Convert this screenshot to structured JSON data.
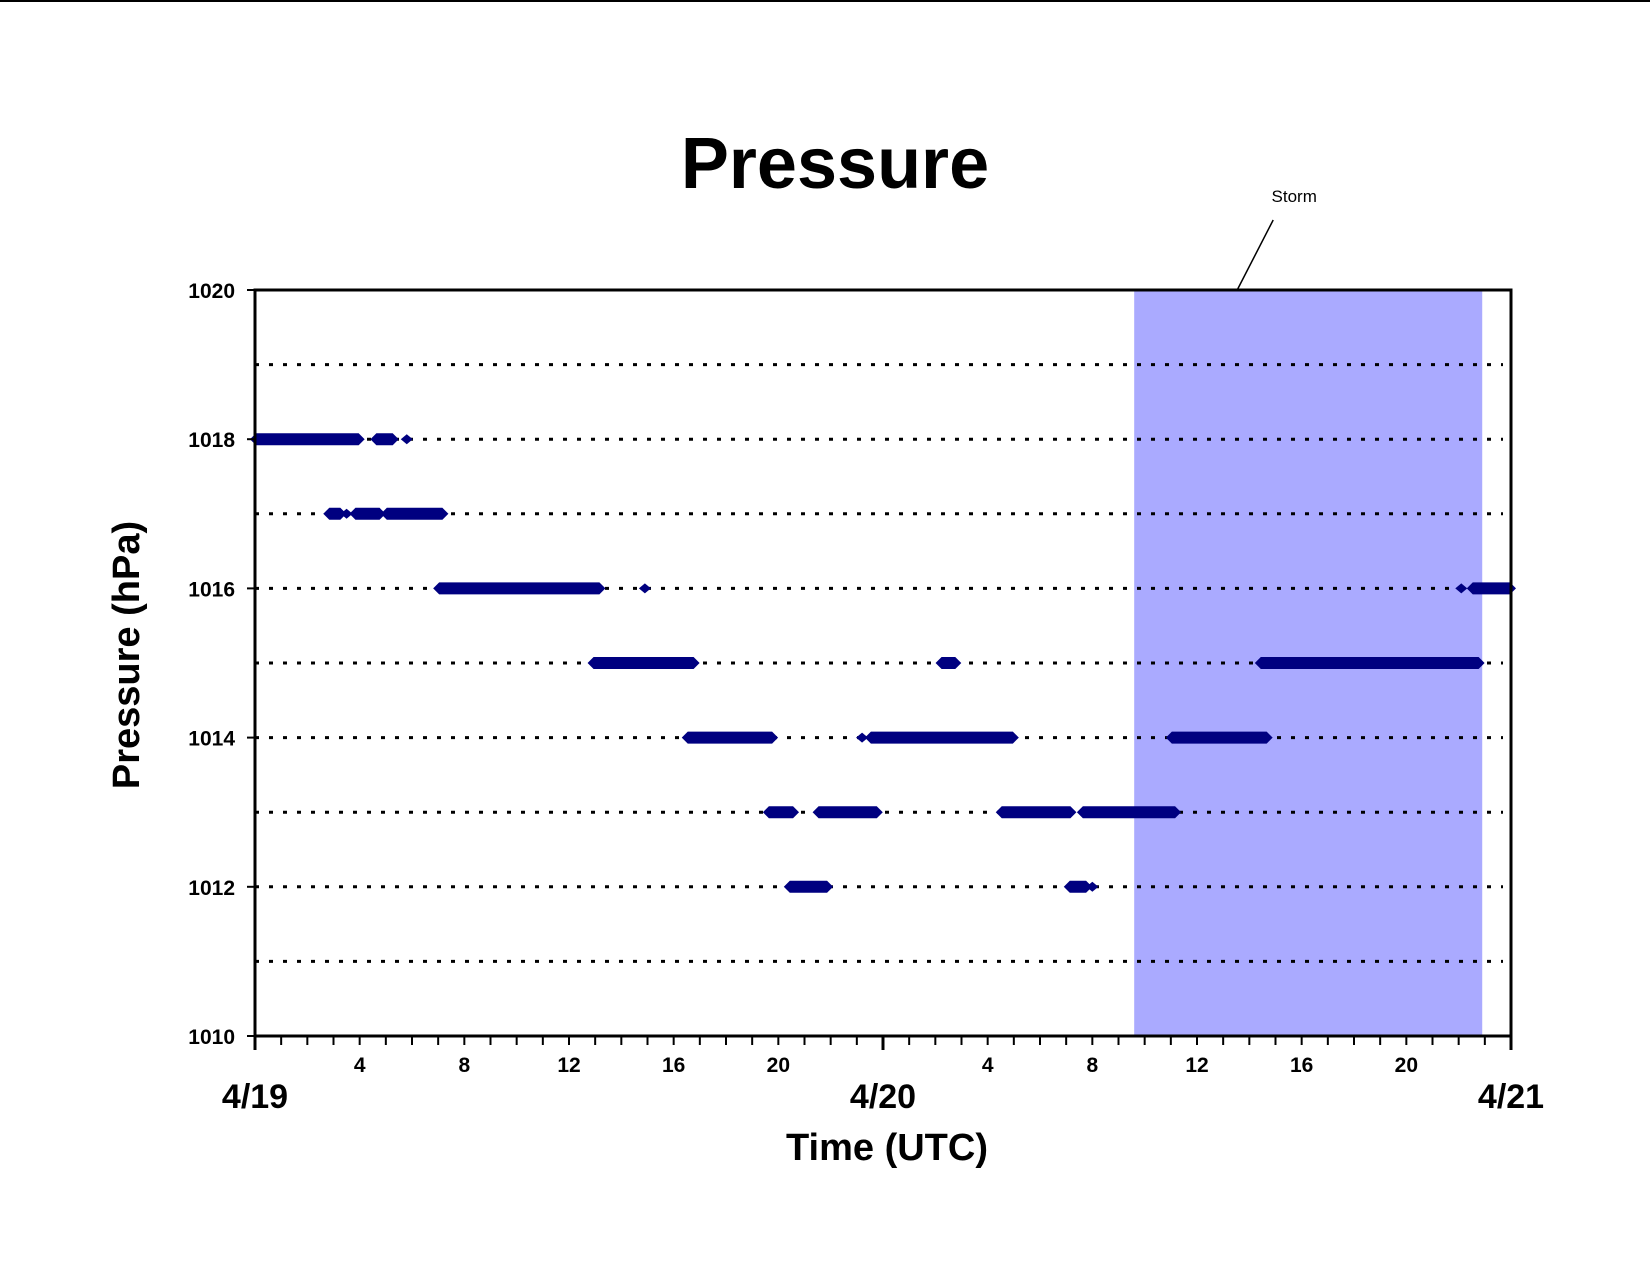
{
  "chart_data": {
    "type": "scatter",
    "title": "Pressure",
    "xlabel": "Time (UTC)",
    "ylabel": "Pressure (hPa)",
    "x_unit": "hours since 4/19 00:00 UTC",
    "xlim": [
      0,
      48
    ],
    "ylim": [
      1010,
      1020
    ],
    "yticks": [
      "1010",
      "1012",
      "1014",
      "1016",
      "1018",
      "1020"
    ],
    "x_hour_tick_labels": [
      {
        "x": 4,
        "label": "4"
      },
      {
        "x": 8,
        "label": "8"
      },
      {
        "x": 12,
        "label": "12"
      },
      {
        "x": 16,
        "label": "16"
      },
      {
        "x": 20,
        "label": "20"
      },
      {
        "x": 28,
        "label": "4"
      },
      {
        "x": 32,
        "label": "8"
      },
      {
        "x": 36,
        "label": "12"
      },
      {
        "x": 40,
        "label": "16"
      },
      {
        "x": 44,
        "label": "20"
      }
    ],
    "x_date_labels": [
      {
        "x": 0,
        "label": "4/19"
      },
      {
        "x": 24,
        "label": "4/20"
      },
      {
        "x": 48,
        "label": "4/21"
      }
    ],
    "grid": "horizontal dotted lines every 1 hPa",
    "legend": "none",
    "shaded_region": {
      "label": "Storm",
      "x_start": 33.6,
      "x_end": 46.9,
      "color": "#aaaaff"
    },
    "marker_color": "#000080",
    "series": [
      {
        "segments": [
          {
            "y": 1018,
            "x": [
              0.0,
              4.0
            ]
          },
          {
            "y": 1018,
            "x": [
              4.6,
              5.3
            ]
          },
          {
            "y": 1018,
            "x": [
              5.8,
              5.8
            ]
          },
          {
            "y": 1017,
            "x": [
              2.8,
              3.3
            ]
          },
          {
            "y": 1017,
            "x": [
              3.5,
              3.5
            ]
          },
          {
            "y": 1017,
            "x": [
              3.8,
              4.8
            ]
          },
          {
            "y": 1017,
            "x": [
              5.0,
              7.2
            ]
          },
          {
            "y": 1016,
            "x": [
              7.0,
              13.2
            ]
          },
          {
            "y": 1016,
            "x": [
              14.9,
              14.9
            ]
          },
          {
            "y": 1015,
            "x": [
              12.9,
              16.8
            ]
          },
          {
            "y": 1015,
            "x": [
              26.2,
              26.8
            ]
          },
          {
            "y": 1014,
            "x": [
              16.5,
              19.8
            ]
          },
          {
            "y": 1014,
            "x": [
              23.2,
              23.2
            ]
          },
          {
            "y": 1014,
            "x": [
              23.5,
              29.0
            ]
          },
          {
            "y": 1013,
            "x": [
              19.6,
              20.6
            ]
          },
          {
            "y": 1013,
            "x": [
              21.5,
              23.8
            ]
          },
          {
            "y": 1013,
            "x": [
              28.5,
              31.2
            ]
          },
          {
            "y": 1013,
            "x": [
              31.6,
              35.2
            ]
          },
          {
            "y": 1012,
            "x": [
              20.4,
              21.9
            ]
          },
          {
            "y": 1012,
            "x": [
              31.1,
              31.8
            ]
          },
          {
            "y": 1012,
            "x": [
              32.0,
              32.0
            ]
          },
          {
            "y": 1014,
            "x": [
              35.0,
              38.7
            ]
          },
          {
            "y": 1015,
            "x": [
              38.4,
              46.8
            ]
          },
          {
            "y": 1016,
            "x": [
              46.1,
              46.1
            ]
          },
          {
            "y": 1016,
            "x": [
              46.5,
              48.0
            ]
          }
        ]
      }
    ]
  }
}
